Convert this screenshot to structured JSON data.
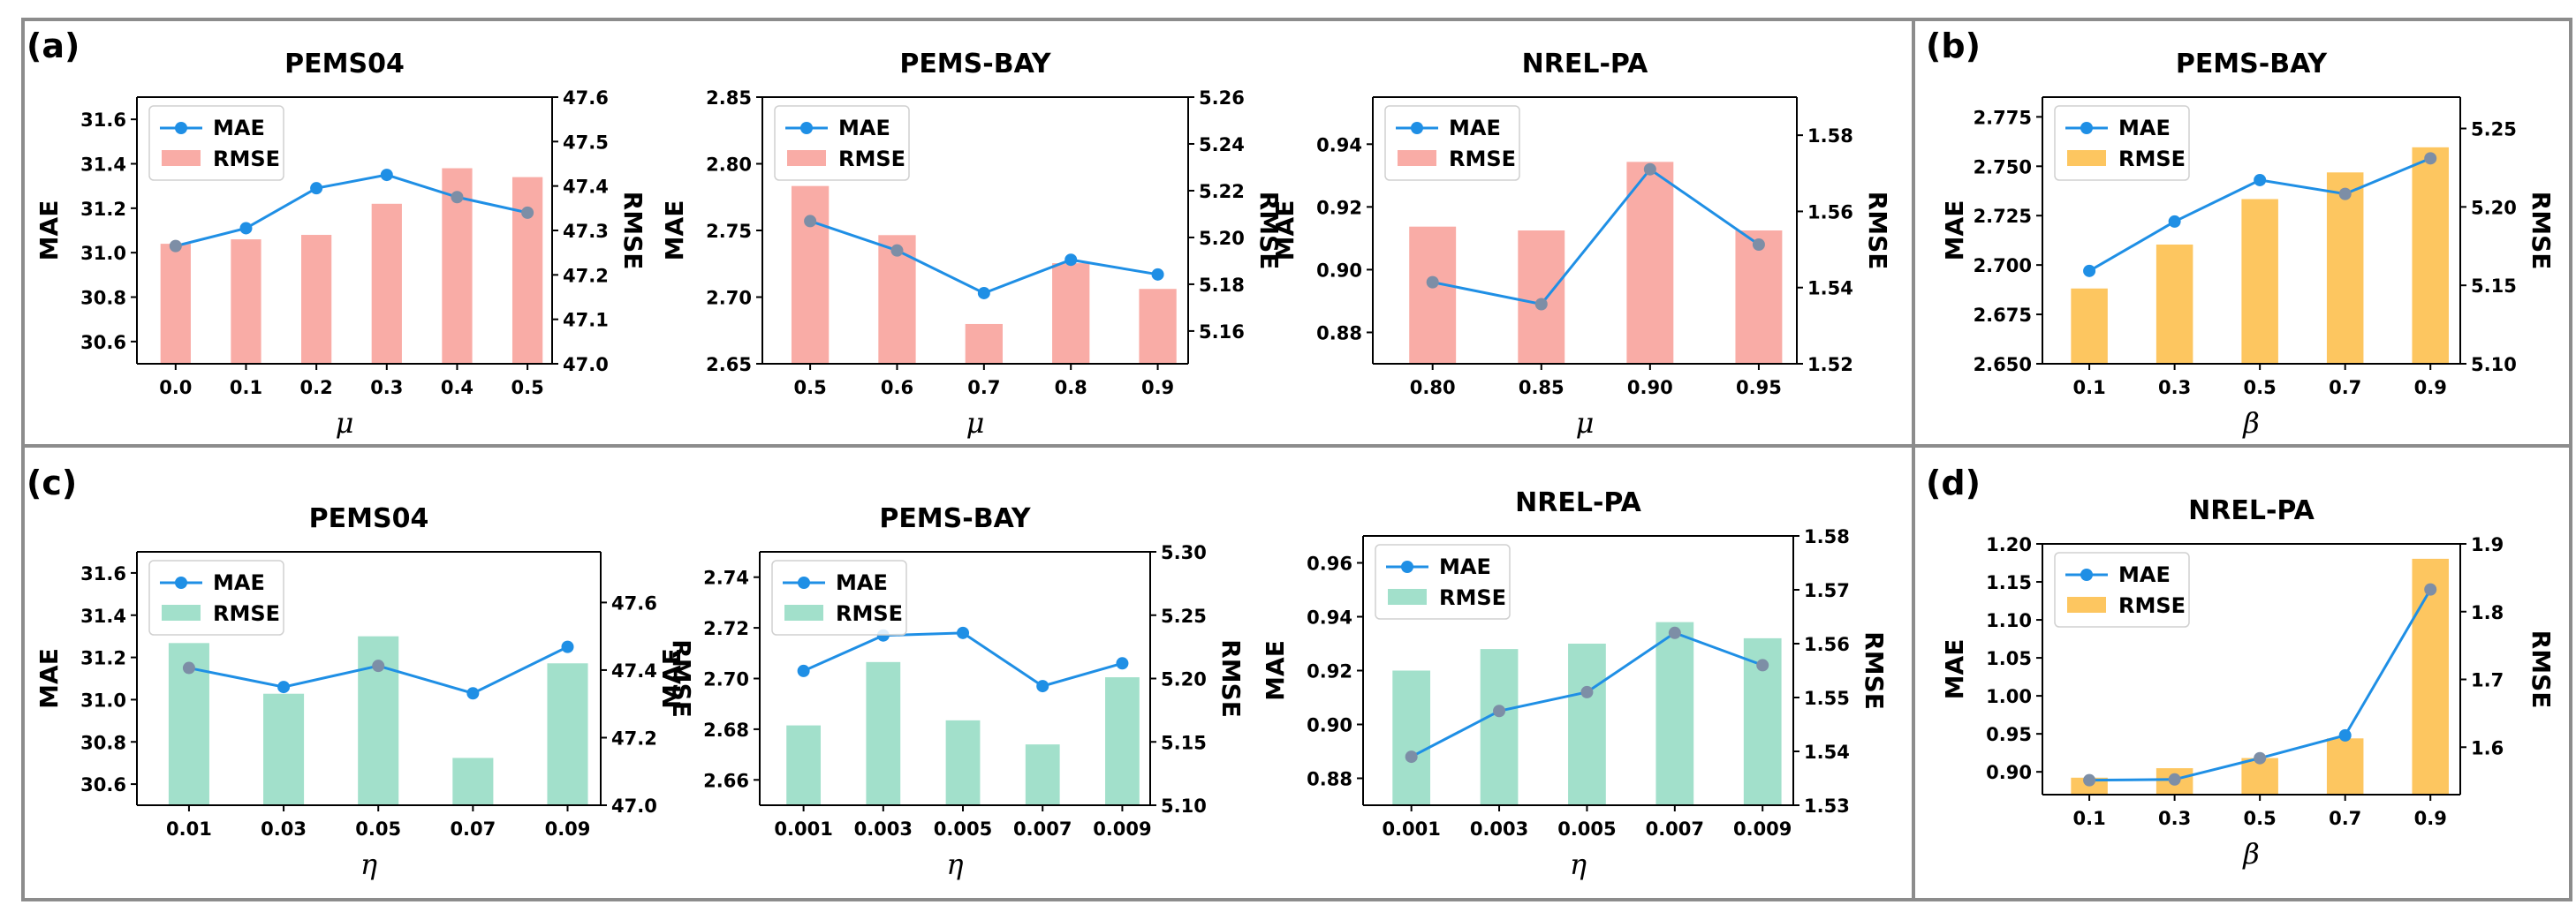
{
  "colors": {
    "mae": "#1f8fe5",
    "mae_marker_dim": "#7d8ea6",
    "rmse_pink": "#f9aca6",
    "rmse_yellow": "#fdc660",
    "rmse_green": "#a2e0cb",
    "frame": "#8c8c8c"
  },
  "panels": [
    {
      "label": "(a)"
    },
    {
      "label": "(b)"
    },
    {
      "label": "(c)"
    },
    {
      "label": "(d)"
    }
  ],
  "chart_data": [
    {
      "type": "bar+line",
      "panel": "(a)",
      "title": "PEMS04",
      "xlabel": "μ",
      "ylabel_left": "MAE",
      "ylabel_right": "RMSE",
      "categories": [
        "0.0",
        "0.1",
        "0.2",
        "0.3",
        "0.4",
        "0.5"
      ],
      "series": [
        {
          "name": "MAE",
          "type": "line",
          "axis": "left",
          "values": [
            31.03,
            31.11,
            31.29,
            31.35,
            31.25,
            31.18
          ]
        },
        {
          "name": "RMSE",
          "type": "bar",
          "axis": "right",
          "color": "rmse_pink",
          "values": [
            47.27,
            47.28,
            47.29,
            47.36,
            47.44,
            47.42
          ]
        }
      ],
      "y_left": {
        "min": 30.5,
        "max": 31.7,
        "ticks": [
          "30.6",
          "30.8",
          "31.0",
          "31.2",
          "31.4",
          "31.6"
        ]
      },
      "y_right": {
        "min": 47.0,
        "max": 47.6,
        "ticks": [
          "47.0",
          "47.1",
          "47.2",
          "47.3",
          "47.4",
          "47.5",
          "47.6"
        ]
      },
      "legend": [
        "MAE",
        "RMSE"
      ]
    },
    {
      "type": "bar+line",
      "panel": "(a)",
      "title": "PEMS-BAY",
      "xlabel": "μ",
      "ylabel_left": "MAE",
      "ylabel_right": "RMSE",
      "categories": [
        "0.5",
        "0.6",
        "0.7",
        "0.8",
        "0.9"
      ],
      "series": [
        {
          "name": "MAE",
          "type": "line",
          "axis": "left",
          "values": [
            2.757,
            2.735,
            2.703,
            2.728,
            2.717
          ]
        },
        {
          "name": "RMSE",
          "type": "bar",
          "axis": "right",
          "color": "rmse_pink",
          "values": [
            5.222,
            5.201,
            5.163,
            5.189,
            5.178
          ]
        }
      ],
      "y_left": {
        "min": 2.65,
        "max": 2.85,
        "ticks": [
          "2.65",
          "2.70",
          "2.75",
          "2.80",
          "2.85"
        ]
      },
      "y_right": {
        "min": 5.146,
        "max": 5.26,
        "ticks": [
          "5.16",
          "5.18",
          "5.20",
          "5.22",
          "5.24",
          "5.26"
        ]
      },
      "legend": [
        "MAE",
        "RMSE"
      ]
    },
    {
      "type": "bar+line",
      "panel": "(a)",
      "title": "NREL-PA",
      "xlabel": "μ",
      "ylabel_left": "MAE",
      "ylabel_right": "RMSE",
      "categories": [
        "0.80",
        "0.85",
        "0.90",
        "0.95"
      ],
      "series": [
        {
          "name": "MAE",
          "type": "line",
          "axis": "left",
          "values": [
            0.896,
            0.889,
            0.932,
            0.908
          ]
        },
        {
          "name": "RMSE",
          "type": "bar",
          "axis": "right",
          "color": "rmse_pink",
          "values": [
            1.556,
            1.555,
            1.573,
            1.555
          ]
        }
      ],
      "y_left": {
        "min": 0.87,
        "max": 0.955,
        "ticks": [
          "0.88",
          "0.90",
          "0.92",
          "0.94"
        ]
      },
      "y_right": {
        "min": 1.52,
        "max": 1.59,
        "ticks": [
          "1.52",
          "1.54",
          "1.56",
          "1.58"
        ]
      },
      "legend": [
        "MAE",
        "RMSE"
      ]
    },
    {
      "type": "bar+line",
      "panel": "(b)",
      "title": "PEMS-BAY",
      "xlabel": "β",
      "ylabel_left": "MAE",
      "ylabel_right": "RMSE",
      "categories": [
        "0.1",
        "0.3",
        "0.5",
        "0.7",
        "0.9"
      ],
      "series": [
        {
          "name": "MAE",
          "type": "line",
          "axis": "left",
          "values": [
            2.697,
            2.722,
            2.743,
            2.736,
            2.754
          ]
        },
        {
          "name": "RMSE",
          "type": "bar",
          "axis": "right",
          "color": "rmse_yellow",
          "values": [
            5.148,
            5.176,
            5.205,
            5.222,
            5.238
          ]
        }
      ],
      "y_left": {
        "min": 2.65,
        "max": 2.785,
        "ticks": [
          "2.650",
          "2.675",
          "2.700",
          "2.725",
          "2.750",
          "2.775"
        ]
      },
      "y_right": {
        "min": 5.1,
        "max": 5.27,
        "ticks": [
          "5.10",
          "5.15",
          "5.20",
          "5.25"
        ]
      },
      "legend": [
        "MAE",
        "RMSE"
      ]
    },
    {
      "type": "bar+line",
      "panel": "(c)",
      "title": "PEMS04",
      "xlabel": "η",
      "ylabel_left": "MAE",
      "ylabel_right": "RMSE",
      "categories": [
        "0.01",
        "0.03",
        "0.05",
        "0.07",
        "0.09"
      ],
      "series": [
        {
          "name": "MAE",
          "type": "line",
          "axis": "left",
          "values": [
            31.15,
            31.06,
            31.16,
            31.03,
            31.25
          ]
        },
        {
          "name": "RMSE",
          "type": "bar",
          "axis": "right",
          "color": "rmse_green",
          "values": [
            47.48,
            47.33,
            47.5,
            47.14,
            47.42
          ]
        }
      ],
      "y_left": {
        "min": 30.5,
        "max": 31.7,
        "ticks": [
          "30.6",
          "30.8",
          "31.0",
          "31.2",
          "31.4",
          "31.6"
        ]
      },
      "y_right": {
        "min": 47.0,
        "max": 47.75,
        "ticks": [
          "47.0",
          "47.2",
          "47.4",
          "47.6"
        ]
      },
      "legend": [
        "MAE",
        "RMSE"
      ]
    },
    {
      "type": "bar+line",
      "panel": "(c)",
      "title": "PEMS-BAY",
      "xlabel": "η",
      "ylabel_left": "MAE",
      "ylabel_right": "RMSE",
      "categories": [
        "0.001",
        "0.003",
        "0.005",
        "0.007",
        "0.009"
      ],
      "series": [
        {
          "name": "MAE",
          "type": "line",
          "axis": "left",
          "values": [
            2.703,
            2.717,
            2.718,
            2.697,
            2.706
          ]
        },
        {
          "name": "RMSE",
          "type": "bar",
          "axis": "right",
          "color": "rmse_green",
          "values": [
            5.163,
            5.213,
            5.167,
            5.148,
            5.201
          ]
        }
      ],
      "y_left": {
        "min": 2.65,
        "max": 2.75,
        "ticks": [
          "2.66",
          "2.68",
          "2.70",
          "2.72",
          "2.74"
        ]
      },
      "y_right": {
        "min": 5.1,
        "max": 5.3,
        "ticks": [
          "5.10",
          "5.15",
          "5.20",
          "5.25",
          "5.30"
        ]
      },
      "legend": [
        "MAE",
        "RMSE"
      ]
    },
    {
      "type": "bar+line",
      "panel": "(c)",
      "title": "NREL-PA",
      "xlabel": "η",
      "ylabel_left": "MAE",
      "ylabel_right": "RMSE",
      "categories": [
        "0.001",
        "0.003",
        "0.005",
        "0.007",
        "0.009"
      ],
      "series": [
        {
          "name": "MAE",
          "type": "line",
          "axis": "left",
          "values": [
            0.888,
            0.905,
            0.912,
            0.934,
            0.922
          ]
        },
        {
          "name": "RMSE",
          "type": "bar",
          "axis": "right",
          "color": "rmse_green",
          "values": [
            1.555,
            1.559,
            1.56,
            1.564,
            1.561
          ]
        }
      ],
      "y_left": {
        "min": 0.87,
        "max": 0.97,
        "ticks": [
          "0.88",
          "0.90",
          "0.92",
          "0.94",
          "0.96"
        ]
      },
      "y_right": {
        "min": 1.53,
        "max": 1.58,
        "ticks": [
          "1.53",
          "1.54",
          "1.55",
          "1.56",
          "1.57",
          "1.58"
        ]
      },
      "legend": [
        "MAE",
        "RMSE"
      ]
    },
    {
      "type": "bar+line",
      "panel": "(d)",
      "title": "NREL-PA",
      "xlabel": "β",
      "ylabel_left": "MAE",
      "ylabel_right": "RMSE",
      "categories": [
        "0.1",
        "0.3",
        "0.5",
        "0.7",
        "0.9"
      ],
      "series": [
        {
          "name": "MAE",
          "type": "line",
          "axis": "left",
          "values": [
            0.889,
            0.89,
            0.918,
            0.948,
            1.14
          ]
        },
        {
          "name": "RMSE",
          "type": "bar",
          "axis": "right",
          "color": "rmse_yellow",
          "values": [
            1.555,
            1.569,
            1.584,
            1.613,
            1.878
          ]
        }
      ],
      "y_left": {
        "min": 0.87,
        "max": 1.2,
        "ticks": [
          "0.90",
          "0.95",
          "1.00",
          "1.05",
          "1.10",
          "1.15",
          "1.20"
        ]
      },
      "y_right": {
        "min": 1.53,
        "max": 1.9,
        "ticks": [
          "1.6",
          "1.7",
          "1.8",
          "1.9"
        ]
      },
      "legend": [
        "MAE",
        "RMSE"
      ]
    }
  ]
}
